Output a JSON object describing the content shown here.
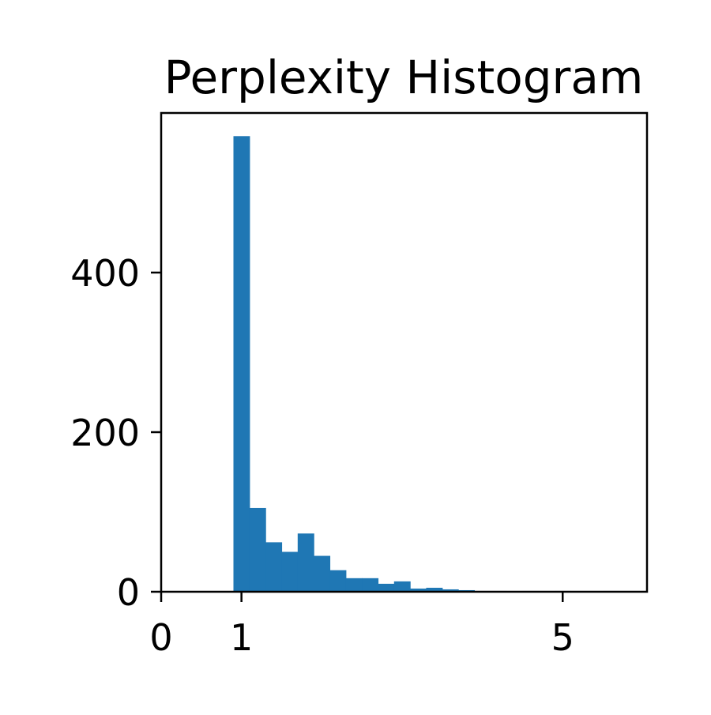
{
  "chart_data": {
    "type": "bar",
    "title": "Perplexity Histogram",
    "xlabel": "",
    "ylabel": "",
    "xlim": [
      0,
      6.05
    ],
    "ylim": [
      0,
      600
    ],
    "x_ticks": [
      0,
      1,
      5
    ],
    "y_ticks": [
      0,
      200,
      400
    ],
    "bar_color": "#1f77b4",
    "bins": [
      {
        "x0": 0.9,
        "x1": 1.1,
        "count": 571
      },
      {
        "x0": 1.1,
        "x1": 1.3,
        "count": 105
      },
      {
        "x0": 1.3,
        "x1": 1.5,
        "count": 62
      },
      {
        "x0": 1.5,
        "x1": 1.7,
        "count": 50
      },
      {
        "x0": 1.7,
        "x1": 1.9,
        "count": 73
      },
      {
        "x0": 1.9,
        "x1": 2.1,
        "count": 45
      },
      {
        "x0": 2.1,
        "x1": 2.3,
        "count": 27
      },
      {
        "x0": 2.3,
        "x1": 2.5,
        "count": 17
      },
      {
        "x0": 2.5,
        "x1": 2.7,
        "count": 17
      },
      {
        "x0": 2.7,
        "x1": 2.9,
        "count": 10
      },
      {
        "x0": 2.9,
        "x1": 3.1,
        "count": 13
      },
      {
        "x0": 3.1,
        "x1": 3.3,
        "count": 4
      },
      {
        "x0": 3.3,
        "x1": 3.5,
        "count": 5
      },
      {
        "x0": 3.5,
        "x1": 3.7,
        "count": 3
      },
      {
        "x0": 3.7,
        "x1": 3.9,
        "count": 2
      },
      {
        "x0": 3.9,
        "x1": 4.1,
        "count": 1
      },
      {
        "x0": 4.1,
        "x1": 4.3,
        "count": 1
      },
      {
        "x0": 4.3,
        "x1": 4.5,
        "count": 0
      },
      {
        "x0": 4.5,
        "x1": 4.7,
        "count": 1
      },
      {
        "x0": 4.7,
        "x1": 4.9,
        "count": 0
      },
      {
        "x0": 4.9,
        "x1": 5.1,
        "count": 1
      },
      {
        "x0": 5.1,
        "x1": 5.3,
        "count": 0
      },
      {
        "x0": 5.3,
        "x1": 5.5,
        "count": 0
      },
      {
        "x0": 5.5,
        "x1": 5.7,
        "count": 1
      }
    ],
    "grid": false,
    "legend": "none"
  }
}
